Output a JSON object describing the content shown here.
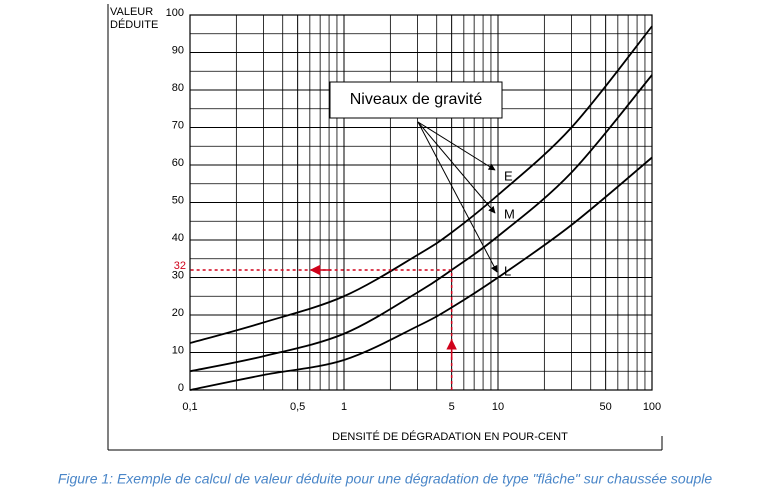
{
  "chart_data": {
    "type": "line",
    "ylabel_lines": [
      "VALEUR",
      "DÉDUITE"
    ],
    "xlabel": "DENSITÉ DE DÉGRADATION EN POUR-CENT",
    "annotation": "Niveaux de gravité",
    "log_x": true,
    "grid": true,
    "xlim": [
      0.1,
      100
    ],
    "ylim": [
      0,
      100
    ],
    "xticks": [
      {
        "value": 0.1,
        "label": "0,1"
      },
      {
        "value": 0.5,
        "label": "0,5"
      },
      1,
      5,
      10,
      50,
      100
    ],
    "x_minor_ticks": [
      0.2,
      0.3,
      0.4,
      0.6,
      0.7,
      0.8,
      0.9,
      2,
      3,
      4,
      6,
      7,
      8,
      9,
      20,
      30,
      40,
      60,
      70,
      80,
      90
    ],
    "yticks": [
      0,
      10,
      20,
      30,
      40,
      50,
      60,
      70,
      80,
      90,
      100
    ],
    "y_minor_ticks": [
      5,
      15,
      25,
      35,
      45,
      55,
      65,
      75,
      85,
      95
    ],
    "x": [
      0.1,
      0.3,
      1,
      3,
      5,
      10,
      30,
      100
    ],
    "series": [
      {
        "name": "E",
        "color": "#000000",
        "values": [
          12.5,
          18,
          25,
          36,
          42,
          52,
          70,
          97
        ]
      },
      {
        "name": "M",
        "color": "#000000",
        "values": [
          5,
          9,
          15,
          26,
          32,
          41,
          58,
          84
        ]
      },
      {
        "name": "L",
        "color": "#000000",
        "values": [
          0,
          4,
          8,
          17,
          22,
          30,
          44,
          62
        ]
      }
    ],
    "example": {
      "x": 5,
      "y": 32,
      "color": "#d0021b"
    }
  },
  "caption": "Figure 1: Exemple de calcul de valeur déduite pour une dégradation de type \"flâche\" sur chaussée souple"
}
